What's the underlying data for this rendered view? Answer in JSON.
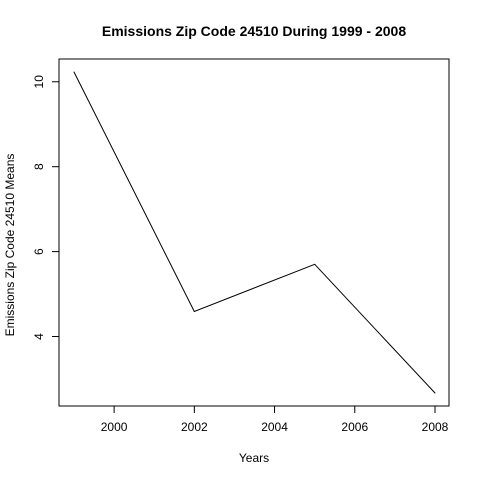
{
  "chart_data": {
    "type": "line",
    "title": "Emissions Zip Code 24510 During 1999 - 2008",
    "xlabel": "Years",
    "ylabel": "Emissions Zip Code 24510 Means",
    "x": [
      1999,
      2002,
      2005,
      2008
    ],
    "series": [
      {
        "values": [
          10.23,
          4.59,
          5.7,
          2.67
        ]
      }
    ],
    "xlim": [
      1999,
      2008
    ],
    "ylim": [
      2.67,
      10.23
    ],
    "xticks": [
      2000,
      2002,
      2004,
      2006,
      2008
    ],
    "yticks": [
      4,
      6,
      8,
      10
    ],
    "grid": false,
    "colors": {
      "line": "#000000",
      "background": "#ffffff"
    }
  }
}
